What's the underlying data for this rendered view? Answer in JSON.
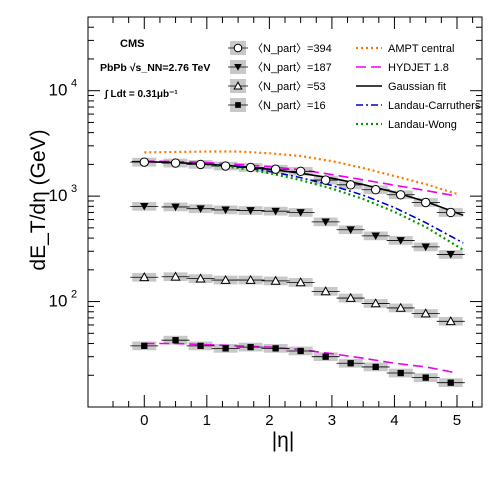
{
  "chart_data": {
    "type": "scatter",
    "title": "",
    "xlabel": "|η|",
    "ylabel": "dE_T/dη (GeV)",
    "xlim": [
      -0.9,
      5.4
    ],
    "ylim": [
      10,
      50000
    ],
    "y_scale": "log",
    "grid": false,
    "legend_placement": "top-right",
    "x_ticks": [
      0,
      1,
      2,
      3,
      4,
      5
    ],
    "y_ticks": [
      100,
      1000,
      10000
    ],
    "annotations": {
      "experiment": "CMS",
      "system": "PbPb √s_NN=2.76 TeV",
      "luminosity": "∫ Ldt = 0.31μb⁻¹"
    },
    "series": [
      {
        "name": "〈N_part〉=394",
        "marker": "open-circle",
        "x": [
          0.0,
          0.5,
          0.9,
          1.3,
          1.7,
          2.1,
          2.5,
          2.9,
          3.3,
          3.7,
          4.1,
          4.5,
          4.9
        ],
        "y": [
          2100,
          2060,
          2000,
          1930,
          1870,
          1800,
          1720,
          1420,
          1280,
          1150,
          1030,
          870,
          700
        ]
      },
      {
        "name": "〈N_part〉=187",
        "marker": "filled-triangle-down",
        "x": [
          0.0,
          0.5,
          0.9,
          1.3,
          1.7,
          2.1,
          2.5,
          2.9,
          3.3,
          3.7,
          4.1,
          4.5,
          4.9
        ],
        "y": [
          800,
          790,
          760,
          740,
          730,
          720,
          700,
          570,
          480,
          420,
          380,
          330,
          280
        ]
      },
      {
        "name": "〈N_part〉=53",
        "marker": "open-triangle-up",
        "x": [
          0.0,
          0.5,
          0.9,
          1.3,
          1.7,
          2.1,
          2.5,
          2.9,
          3.3,
          3.7,
          4.1,
          4.5,
          4.9
        ],
        "y": [
          170,
          172,
          165,
          160,
          160,
          157,
          152,
          125,
          108,
          96,
          87,
          77,
          65
        ]
      },
      {
        "name": "〈N_part〉=16",
        "marker": "filled-square",
        "x": [
          0.0,
          0.5,
          0.9,
          1.3,
          1.7,
          2.1,
          2.5,
          2.9,
          3.3,
          3.7,
          4.1,
          4.5,
          4.9
        ],
        "y": [
          38,
          43,
          38,
          36,
          37,
          36,
          34,
          30,
          26,
          24,
          21,
          19,
          17
        ]
      }
    ],
    "curves": [
      {
        "name": "AMPT central",
        "color": "#ff7700",
        "style": "dotted",
        "x": [
          0,
          0.5,
          1.0,
          1.5,
          2.0,
          2.5,
          3.0,
          3.5,
          4.0,
          4.5,
          5.0
        ],
        "y": [
          2600,
          2620,
          2650,
          2650,
          2550,
          2400,
          2150,
          1850,
          1550,
          1300,
          1050
        ]
      },
      {
        "name": "HYDJET 1.8",
        "color": "#ee00ee",
        "style": "dashed",
        "x": [
          0,
          0.5,
          1.0,
          1.5,
          2.0,
          2.5,
          3.0,
          3.5,
          4.0,
          4.5,
          5.0
        ],
        "y": [
          2150,
          2130,
          2080,
          2000,
          1900,
          1780,
          1600,
          1430,
          1270,
          1130,
          1000
        ]
      },
      {
        "name": "HYDJET 1.8",
        "color": "#ee00ee",
        "style": "dashed",
        "x": [
          0,
          0.5,
          1.0,
          1.5,
          2.0,
          2.5,
          3.0,
          3.5,
          4.0,
          4.5,
          5.0
        ],
        "y": [
          40,
          40,
          39,
          38,
          37,
          35,
          32,
          29,
          26,
          24,
          21
        ]
      },
      {
        "name": "Gaussian fit",
        "color": "#000000",
        "style": "solid",
        "x": [
          -0.2,
          0.0,
          0.5,
          1.0,
          1.5,
          2.0,
          2.5,
          3.0,
          3.5,
          4.0,
          4.5,
          5.1
        ],
        "y": [
          2120,
          2120,
          2080,
          2010,
          1920,
          1800,
          1650,
          1480,
          1290,
          1090,
          890,
          660
        ]
      },
      {
        "name": "Landau-Carruthers",
        "color": "#0000cc",
        "style": "dash-dot",
        "x": [
          1.0,
          1.5,
          2.0,
          2.5,
          3.0,
          3.5,
          4.0,
          4.5,
          5.1
        ],
        "y": [
          2020,
          1900,
          1720,
          1500,
          1260,
          1020,
          780,
          560,
          360
        ]
      },
      {
        "name": "Landau-Wong",
        "color": "#009900",
        "style": "dotted",
        "x": [
          1.0,
          1.5,
          2.0,
          2.5,
          3.0,
          3.5,
          4.0,
          4.5,
          5.1
        ],
        "y": [
          2000,
          1850,
          1650,
          1420,
          1180,
          940,
          710,
          510,
          310
        ]
      }
    ]
  }
}
